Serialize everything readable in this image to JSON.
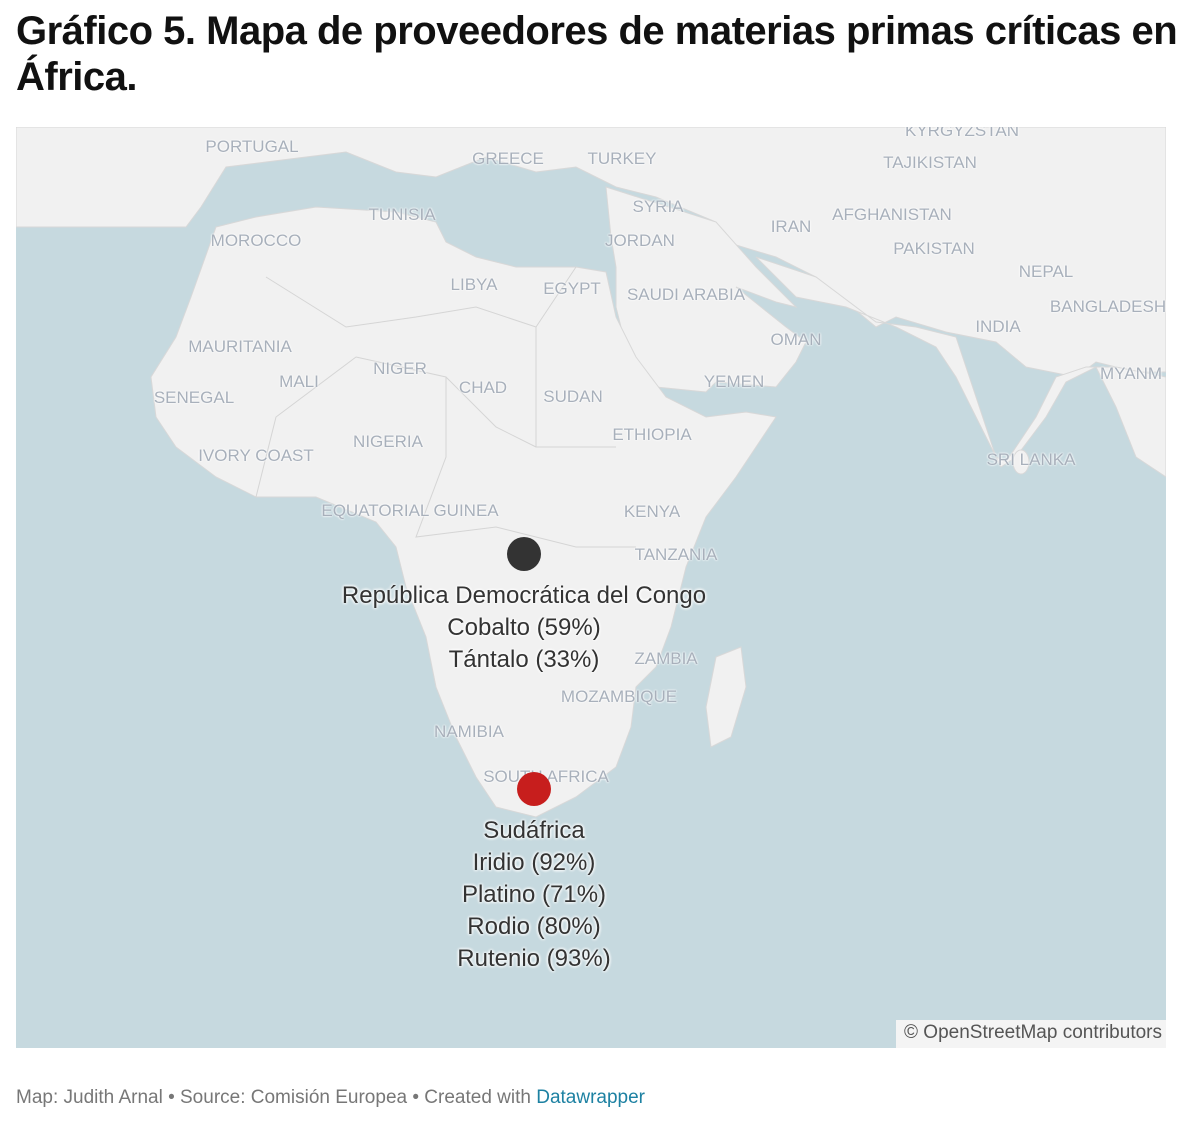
{
  "title": "Gráfico 5. Mapa de proveedores de materias primas críticas en África.",
  "map": {
    "country_labels": [
      "Portugal",
      "Greece",
      "Turkey",
      "Kyrgyzstan",
      "Tajikistan",
      "Tunisia",
      "Syria",
      "Morocco",
      "Jordan",
      "Iran",
      "Afghanistan",
      "Pakistan",
      "Libya",
      "Egypt",
      "Saudi Arabia",
      "Nepal",
      "Bangladesh",
      "India",
      "Oman",
      "Mauritania",
      "Niger",
      "Mali",
      "Chad",
      "Sudan",
      "Yemen",
      "Senegal",
      "Nigeria",
      "Ethiopia",
      "Ivory Coast",
      "Sri Lanka",
      "Myanm",
      "Equatorial Guinea",
      "Kenya",
      "Tanzania",
      "Zambia",
      "Mozambique",
      "Namibia",
      "South Africa"
    ],
    "markers": [
      {
        "country": "República Democrática del Congo",
        "lines": [
          "Cobalto (59%)",
          "Tántalo (33%)"
        ],
        "color": "#333333"
      },
      {
        "country": "Sudáfrica",
        "lines": [
          "Iridio (92%)",
          "Platino (71%)",
          "Rodio (80%)",
          "Rutenio (93%)"
        ],
        "color": "#c71e1d"
      }
    ],
    "colors": {
      "water": "#c6d9df",
      "land": "#f1f1f1"
    },
    "attribution": "© OpenStreetMap contributors"
  },
  "footer": {
    "prefix": "Map: Judith Arnal • Source: Comisión Europea • Created with ",
    "link": "Datawrapper"
  }
}
